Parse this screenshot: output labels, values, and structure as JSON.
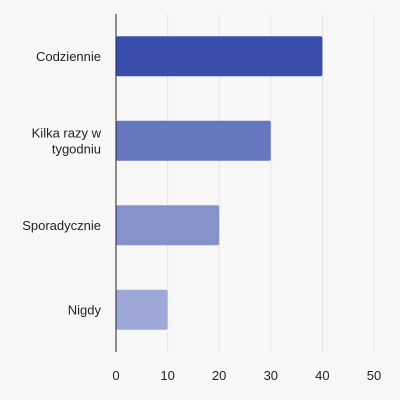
{
  "chart_data": {
    "type": "bar",
    "orientation": "horizontal",
    "categories": [
      "Codziennie",
      "Kilka razy w tygodniu",
      "Sporadycznie",
      "Nigdy"
    ],
    "category_label_lines": [
      [
        "Codziennie"
      ],
      [
        "Kilka razy w",
        "tygodniu"
      ],
      [
        "Sporadycznie"
      ],
      [
        "Nigdy"
      ]
    ],
    "values": [
      40,
      30,
      20,
      10
    ],
    "bar_colors": [
      "#3a4fad",
      "#6777bd",
      "#8593ca",
      "#9ea8d6"
    ],
    "xlim": [
      0,
      50
    ],
    "xticks": [
      0,
      10,
      20,
      30,
      40,
      50
    ],
    "grid": true,
    "legend": false,
    "title": "",
    "xlabel": "",
    "ylabel": ""
  }
}
